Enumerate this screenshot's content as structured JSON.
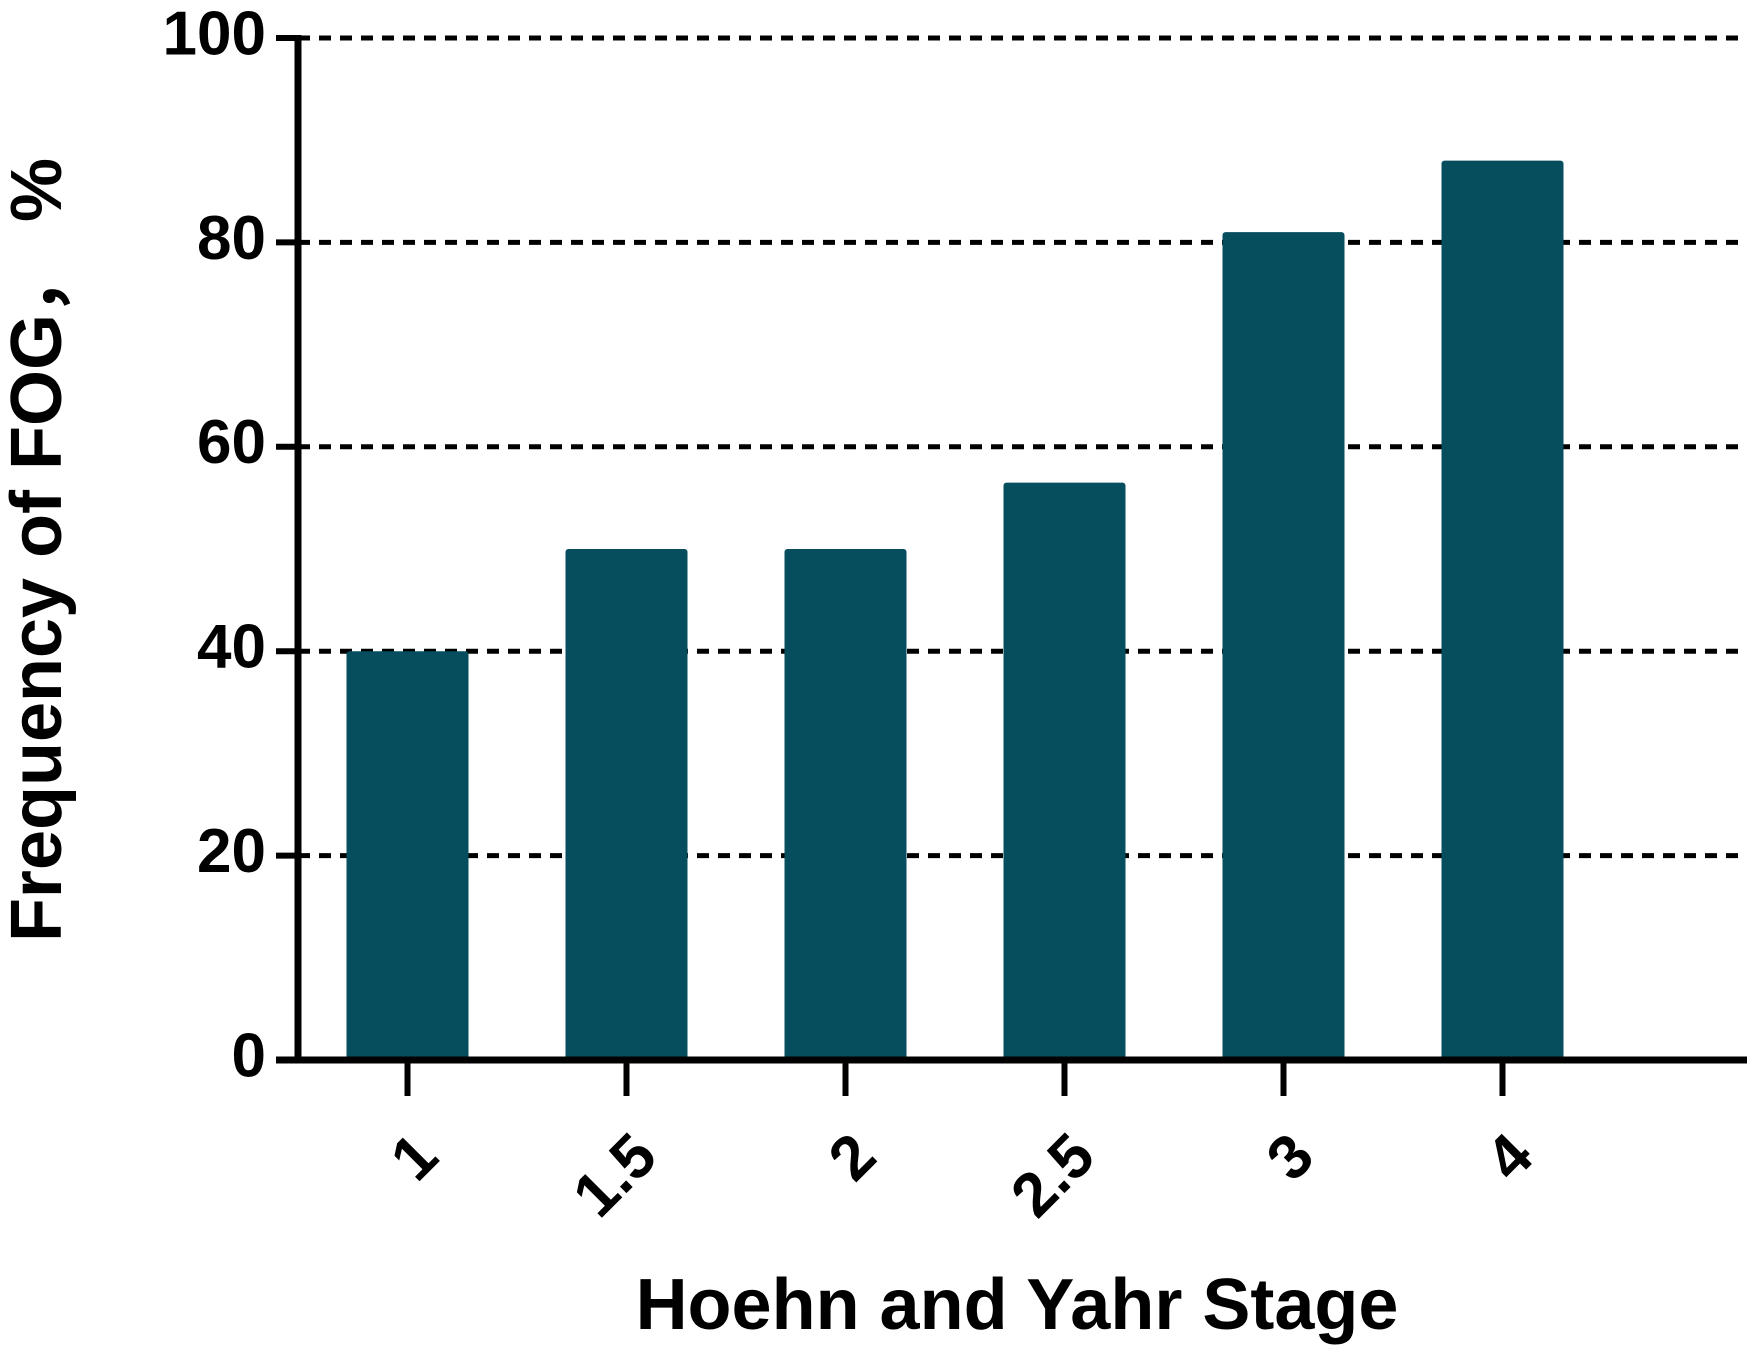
{
  "chart_data": {
    "type": "bar",
    "x_label": "Hoehn and Yahr Stage",
    "y_label": "Frequency of FOG，  %",
    "categories": [
      "1",
      "1.5",
      "2",
      "2.5",
      "3",
      "4"
    ],
    "values": [
      40,
      50,
      50,
      56.5,
      81,
      88
    ],
    "color": "#064d5e",
    "ylim": [
      0,
      100
    ],
    "yticks": [
      0,
      20,
      40,
      60,
      80,
      100
    ],
    "grid": true
  }
}
